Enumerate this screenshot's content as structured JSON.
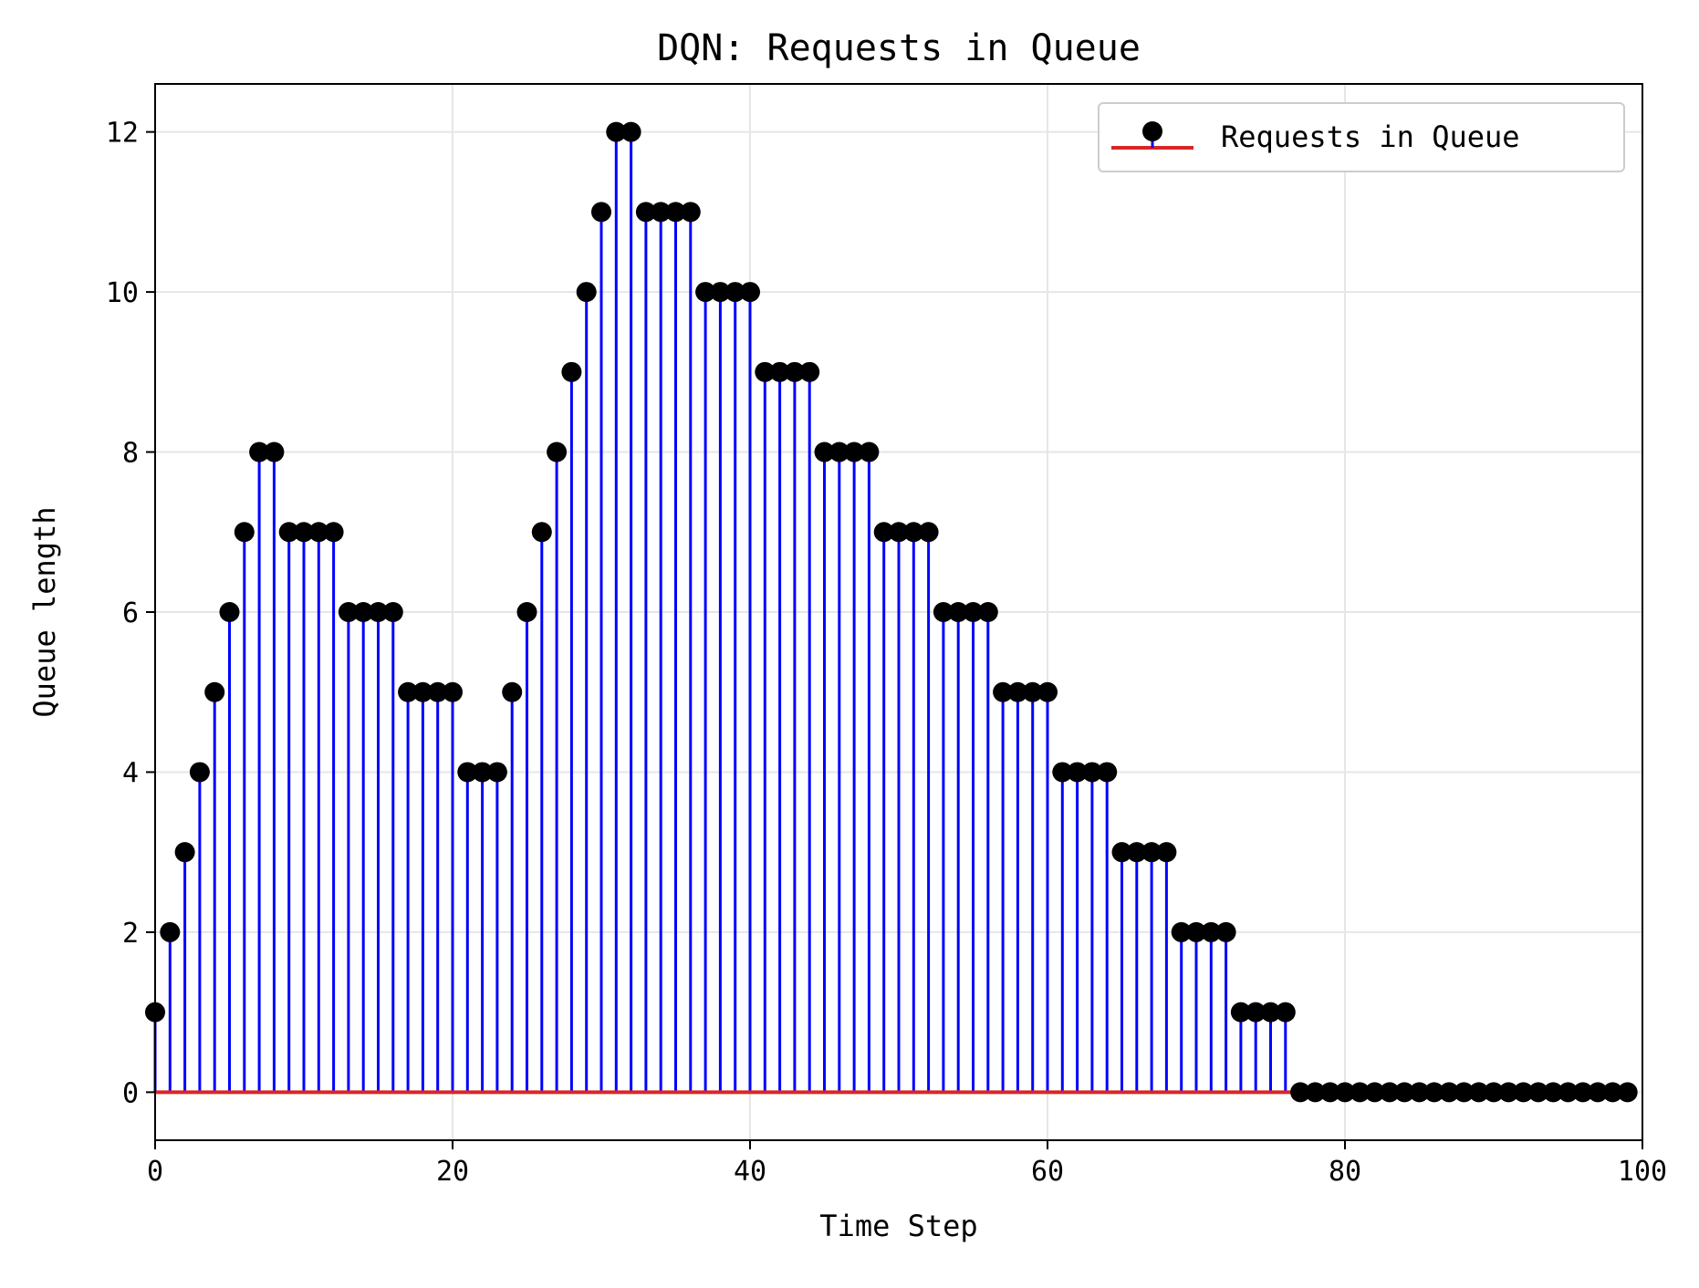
{
  "chart_data": {
    "type": "stem",
    "title": "DQN: Requests in Queue",
    "xlabel": "Time Step",
    "ylabel": "Queue length",
    "xlim": [
      0,
      100
    ],
    "ylim": [
      -0.6,
      12.6
    ],
    "xticks": [
      0,
      20,
      40,
      60,
      80,
      100
    ],
    "yticks": [
      0,
      2,
      4,
      6,
      8,
      10,
      12
    ],
    "grid": true,
    "legend": {
      "position": "top-right",
      "entries": [
        "Requests in Queue"
      ]
    },
    "colors": {
      "stem": "#0000ff",
      "marker": "#000000",
      "baseline": "#d62728",
      "grid": "#e6e6e6"
    },
    "series": [
      {
        "name": "Requests in Queue",
        "x": [
          0,
          1,
          2,
          3,
          4,
          5,
          6,
          7,
          8,
          9,
          10,
          11,
          12,
          13,
          14,
          15,
          16,
          17,
          18,
          19,
          20,
          21,
          22,
          23,
          24,
          25,
          26,
          27,
          28,
          29,
          30,
          31,
          32,
          33,
          34,
          35,
          36,
          37,
          38,
          39,
          40,
          41,
          42,
          43,
          44,
          45,
          46,
          47,
          48,
          49,
          50,
          51,
          52,
          53,
          54,
          55,
          56,
          57,
          58,
          59,
          60,
          61,
          62,
          63,
          64,
          65,
          66,
          67,
          68,
          69,
          70,
          71,
          72,
          73,
          74,
          75,
          76,
          77,
          78,
          79,
          80,
          81,
          82,
          83,
          84,
          85,
          86,
          87,
          88,
          89,
          90,
          91,
          92,
          93,
          94,
          95,
          96,
          97,
          98,
          99
        ],
        "y": [
          1,
          2,
          3,
          4,
          5,
          6,
          7,
          8,
          8,
          7,
          7,
          7,
          7,
          6,
          6,
          6,
          6,
          5,
          5,
          5,
          5,
          4,
          4,
          4,
          5,
          6,
          7,
          8,
          9,
          10,
          11,
          12,
          12,
          11,
          11,
          11,
          11,
          10,
          10,
          10,
          10,
          9,
          9,
          9,
          9,
          8,
          8,
          8,
          8,
          7,
          7,
          7,
          7,
          6,
          6,
          6,
          6,
          5,
          5,
          5,
          5,
          4,
          4,
          4,
          4,
          3,
          3,
          3,
          3,
          2,
          2,
          2,
          2,
          1,
          1,
          1,
          1,
          0,
          0,
          0,
          0,
          0,
          0,
          0,
          0,
          0,
          0,
          0,
          0,
          0,
          0,
          0,
          0,
          0,
          0,
          0,
          0,
          0,
          0,
          0
        ]
      }
    ]
  }
}
